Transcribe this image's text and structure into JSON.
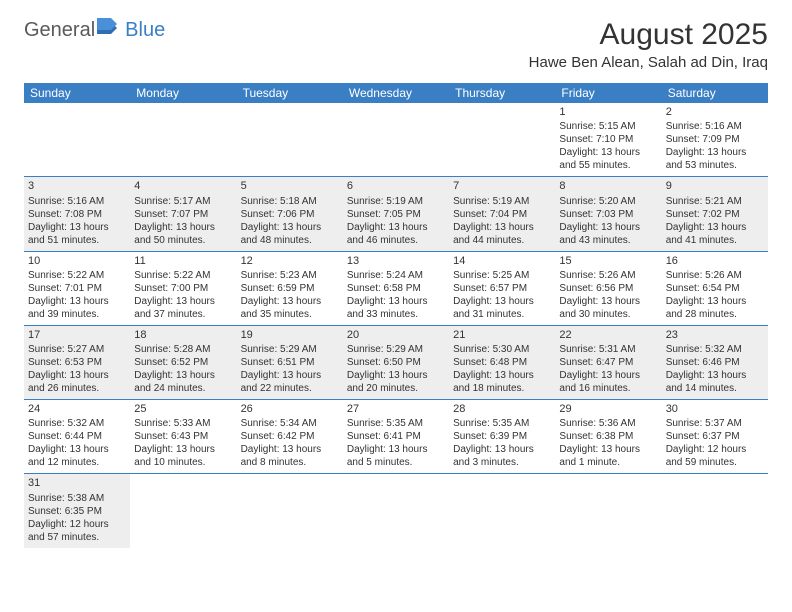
{
  "logo": {
    "text1": "General",
    "text2": "Blue"
  },
  "title": "August 2025",
  "subtitle": "Hawe Ben Alean, Salah ad Din, Iraq",
  "colors": {
    "header_bg": "#3a7fc4",
    "header_text": "#ffffff",
    "row_alt_bg": "#eeeeee",
    "border": "#3a7fc4",
    "text": "#333333"
  },
  "day_headers": [
    "Sunday",
    "Monday",
    "Tuesday",
    "Wednesday",
    "Thursday",
    "Friday",
    "Saturday"
  ],
  "weeks": [
    [
      null,
      null,
      null,
      null,
      null,
      {
        "n": "1",
        "sr": "Sunrise: 5:15 AM",
        "ss": "Sunset: 7:10 PM",
        "dl": "Daylight: 13 hours and 55 minutes."
      },
      {
        "n": "2",
        "sr": "Sunrise: 5:16 AM",
        "ss": "Sunset: 7:09 PM",
        "dl": "Daylight: 13 hours and 53 minutes."
      }
    ],
    [
      {
        "n": "3",
        "sr": "Sunrise: 5:16 AM",
        "ss": "Sunset: 7:08 PM",
        "dl": "Daylight: 13 hours and 51 minutes."
      },
      {
        "n": "4",
        "sr": "Sunrise: 5:17 AM",
        "ss": "Sunset: 7:07 PM",
        "dl": "Daylight: 13 hours and 50 minutes."
      },
      {
        "n": "5",
        "sr": "Sunrise: 5:18 AM",
        "ss": "Sunset: 7:06 PM",
        "dl": "Daylight: 13 hours and 48 minutes."
      },
      {
        "n": "6",
        "sr": "Sunrise: 5:19 AM",
        "ss": "Sunset: 7:05 PM",
        "dl": "Daylight: 13 hours and 46 minutes."
      },
      {
        "n": "7",
        "sr": "Sunrise: 5:19 AM",
        "ss": "Sunset: 7:04 PM",
        "dl": "Daylight: 13 hours and 44 minutes."
      },
      {
        "n": "8",
        "sr": "Sunrise: 5:20 AM",
        "ss": "Sunset: 7:03 PM",
        "dl": "Daylight: 13 hours and 43 minutes."
      },
      {
        "n": "9",
        "sr": "Sunrise: 5:21 AM",
        "ss": "Sunset: 7:02 PM",
        "dl": "Daylight: 13 hours and 41 minutes."
      }
    ],
    [
      {
        "n": "10",
        "sr": "Sunrise: 5:22 AM",
        "ss": "Sunset: 7:01 PM",
        "dl": "Daylight: 13 hours and 39 minutes."
      },
      {
        "n": "11",
        "sr": "Sunrise: 5:22 AM",
        "ss": "Sunset: 7:00 PM",
        "dl": "Daylight: 13 hours and 37 minutes."
      },
      {
        "n": "12",
        "sr": "Sunrise: 5:23 AM",
        "ss": "Sunset: 6:59 PM",
        "dl": "Daylight: 13 hours and 35 minutes."
      },
      {
        "n": "13",
        "sr": "Sunrise: 5:24 AM",
        "ss": "Sunset: 6:58 PM",
        "dl": "Daylight: 13 hours and 33 minutes."
      },
      {
        "n": "14",
        "sr": "Sunrise: 5:25 AM",
        "ss": "Sunset: 6:57 PM",
        "dl": "Daylight: 13 hours and 31 minutes."
      },
      {
        "n": "15",
        "sr": "Sunrise: 5:26 AM",
        "ss": "Sunset: 6:56 PM",
        "dl": "Daylight: 13 hours and 30 minutes."
      },
      {
        "n": "16",
        "sr": "Sunrise: 5:26 AM",
        "ss": "Sunset: 6:54 PM",
        "dl": "Daylight: 13 hours and 28 minutes."
      }
    ],
    [
      {
        "n": "17",
        "sr": "Sunrise: 5:27 AM",
        "ss": "Sunset: 6:53 PM",
        "dl": "Daylight: 13 hours and 26 minutes."
      },
      {
        "n": "18",
        "sr": "Sunrise: 5:28 AM",
        "ss": "Sunset: 6:52 PM",
        "dl": "Daylight: 13 hours and 24 minutes."
      },
      {
        "n": "19",
        "sr": "Sunrise: 5:29 AM",
        "ss": "Sunset: 6:51 PM",
        "dl": "Daylight: 13 hours and 22 minutes."
      },
      {
        "n": "20",
        "sr": "Sunrise: 5:29 AM",
        "ss": "Sunset: 6:50 PM",
        "dl": "Daylight: 13 hours and 20 minutes."
      },
      {
        "n": "21",
        "sr": "Sunrise: 5:30 AM",
        "ss": "Sunset: 6:48 PM",
        "dl": "Daylight: 13 hours and 18 minutes."
      },
      {
        "n": "22",
        "sr": "Sunrise: 5:31 AM",
        "ss": "Sunset: 6:47 PM",
        "dl": "Daylight: 13 hours and 16 minutes."
      },
      {
        "n": "23",
        "sr": "Sunrise: 5:32 AM",
        "ss": "Sunset: 6:46 PM",
        "dl": "Daylight: 13 hours and 14 minutes."
      }
    ],
    [
      {
        "n": "24",
        "sr": "Sunrise: 5:32 AM",
        "ss": "Sunset: 6:44 PM",
        "dl": "Daylight: 13 hours and 12 minutes."
      },
      {
        "n": "25",
        "sr": "Sunrise: 5:33 AM",
        "ss": "Sunset: 6:43 PM",
        "dl": "Daylight: 13 hours and 10 minutes."
      },
      {
        "n": "26",
        "sr": "Sunrise: 5:34 AM",
        "ss": "Sunset: 6:42 PM",
        "dl": "Daylight: 13 hours and 8 minutes."
      },
      {
        "n": "27",
        "sr": "Sunrise: 5:35 AM",
        "ss": "Sunset: 6:41 PM",
        "dl": "Daylight: 13 hours and 5 minutes."
      },
      {
        "n": "28",
        "sr": "Sunrise: 5:35 AM",
        "ss": "Sunset: 6:39 PM",
        "dl": "Daylight: 13 hours and 3 minutes."
      },
      {
        "n": "29",
        "sr": "Sunrise: 5:36 AM",
        "ss": "Sunset: 6:38 PM",
        "dl": "Daylight: 13 hours and 1 minute."
      },
      {
        "n": "30",
        "sr": "Sunrise: 5:37 AM",
        "ss": "Sunset: 6:37 PM",
        "dl": "Daylight: 12 hours and 59 minutes."
      }
    ],
    [
      {
        "n": "31",
        "sr": "Sunrise: 5:38 AM",
        "ss": "Sunset: 6:35 PM",
        "dl": "Daylight: 12 hours and 57 minutes."
      },
      null,
      null,
      null,
      null,
      null,
      null
    ]
  ]
}
